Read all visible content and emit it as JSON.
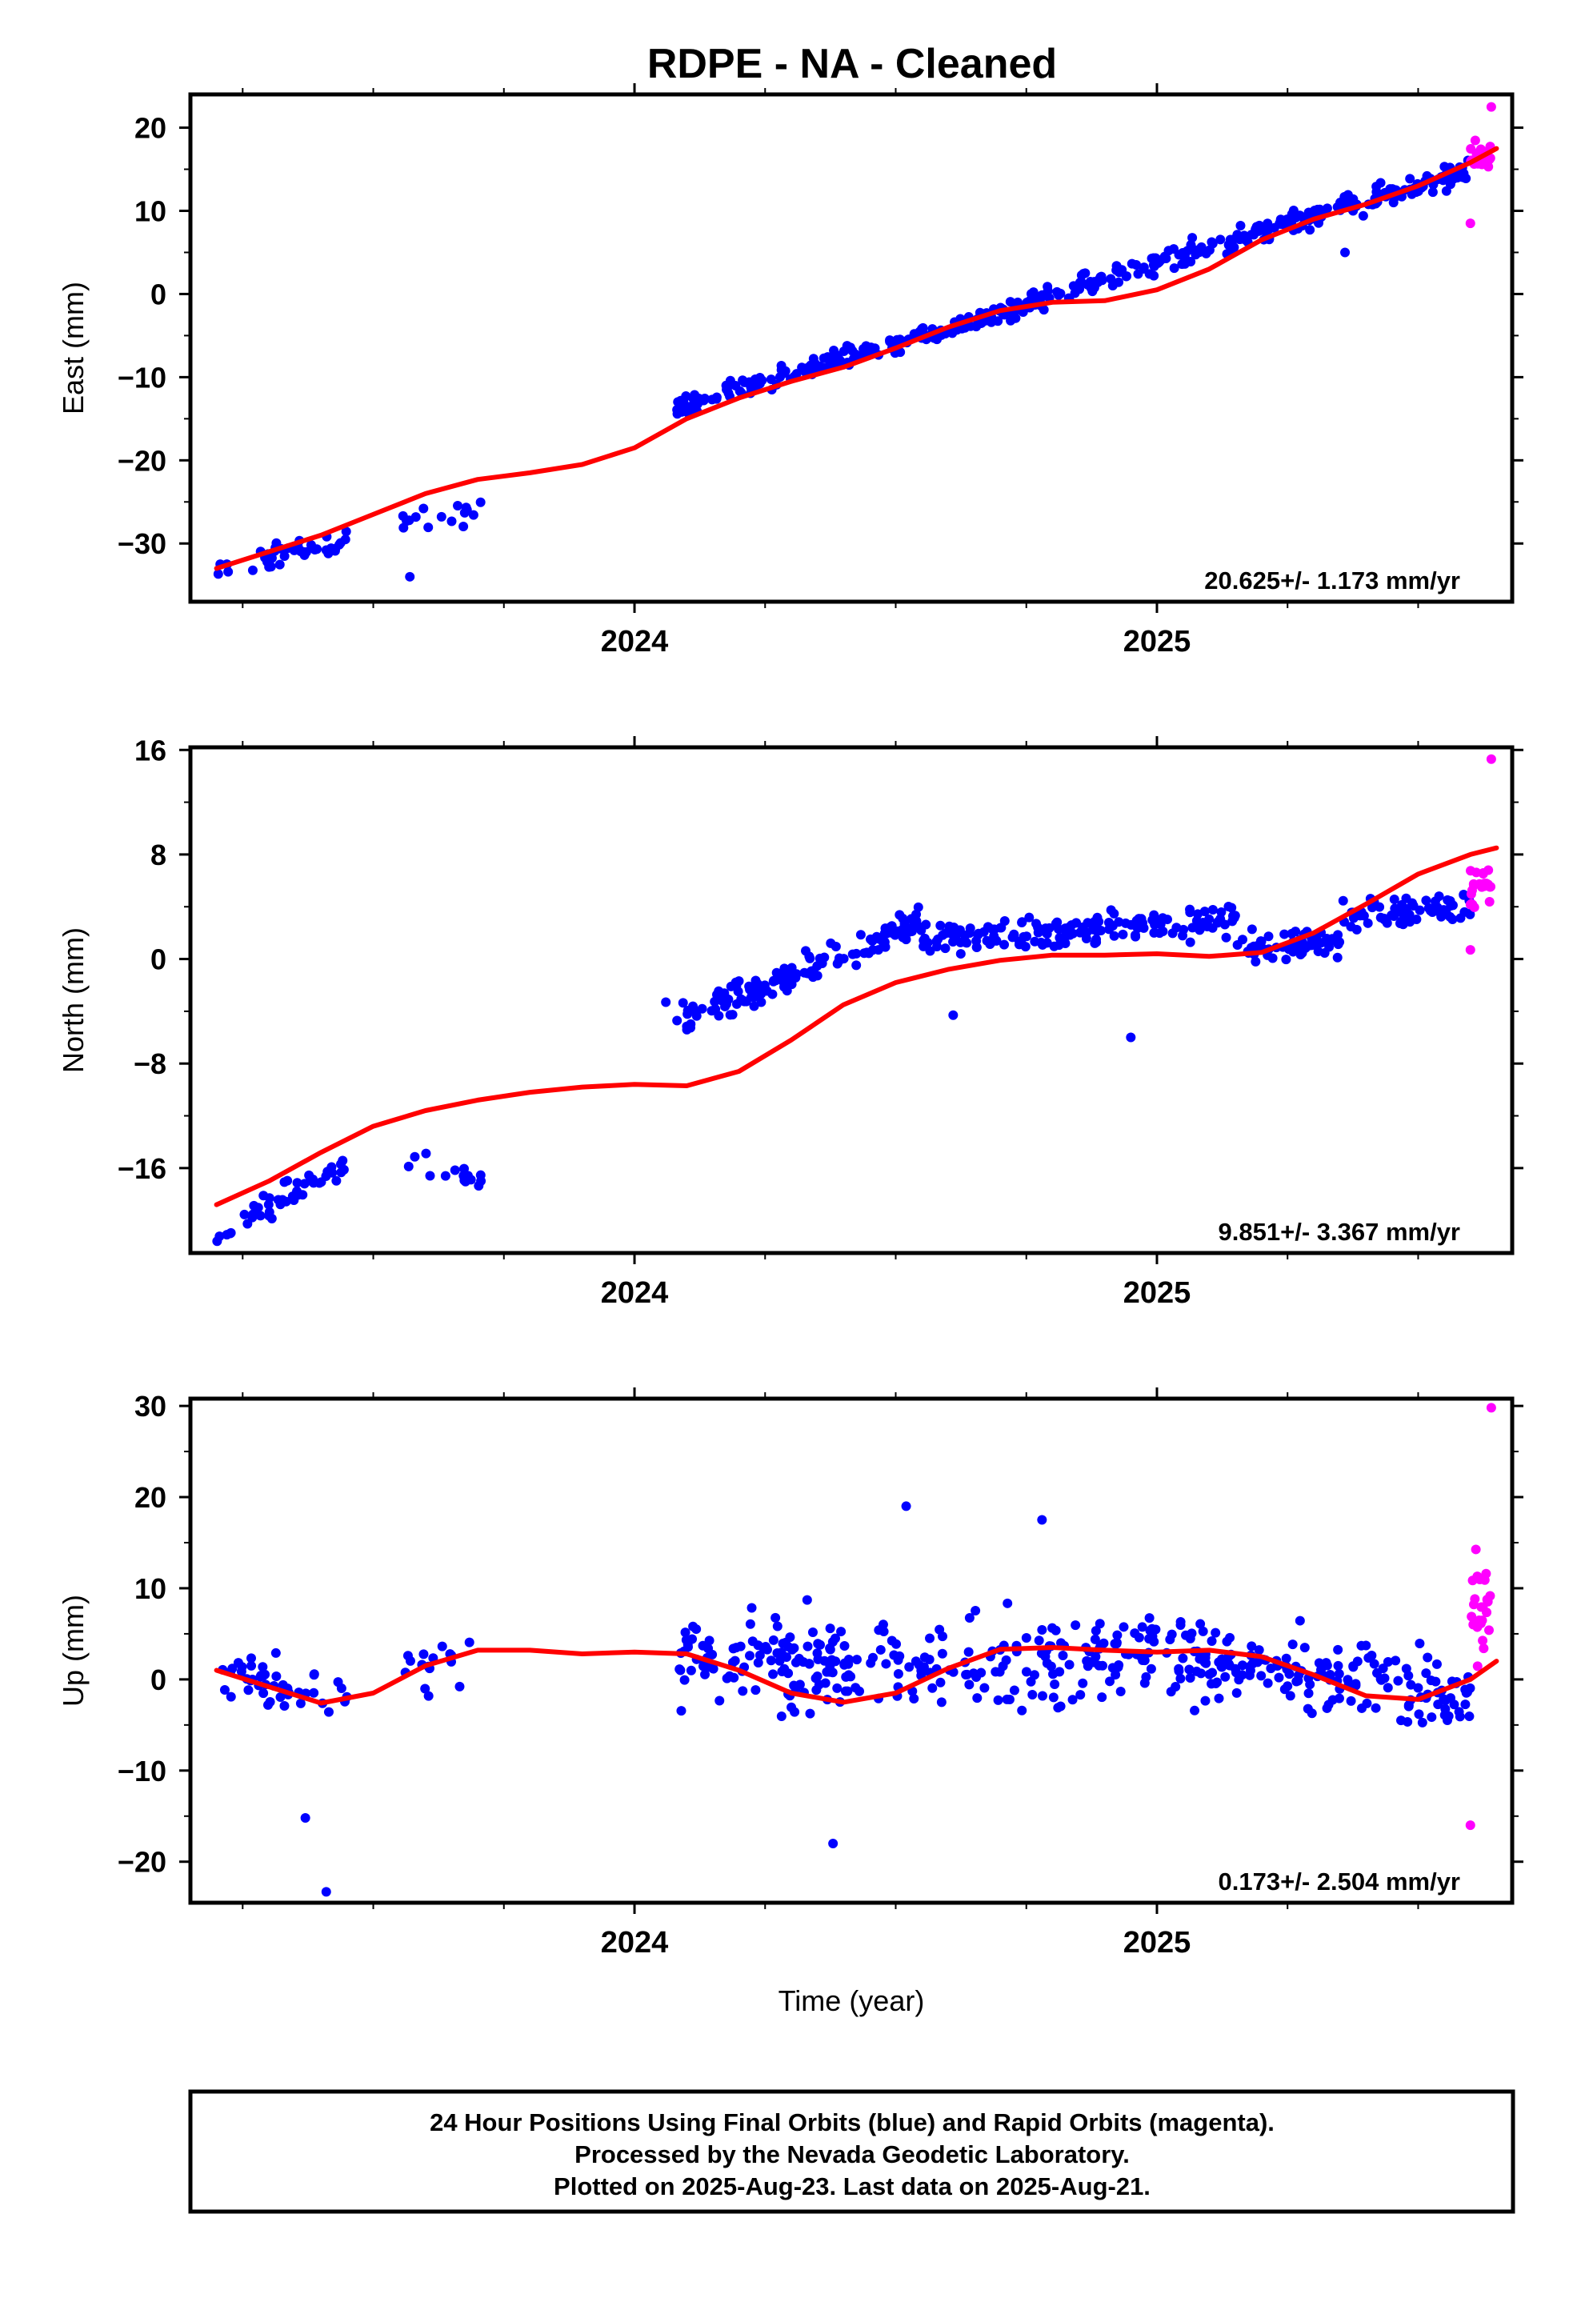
{
  "title": "RDPE  - NA - Cleaned",
  "colors": {
    "final": "#0000ff",
    "rapid": "#ff00ff",
    "model": "#ff0000",
    "frame": "#000000"
  },
  "chart_data": [
    {
      "type": "scatter",
      "ylabel": "East (mm)",
      "xlabel": "",
      "xlim": [
        2023.15,
        2025.68
      ],
      "ylim": [
        -37,
        24
      ],
      "yticks": [
        20,
        10,
        0,
        -10,
        -20,
        -30
      ],
      "ytick_labels": [
        "20",
        "10",
        "0",
        "−10",
        "−20",
        "−30"
      ],
      "xtick_labels": [
        "2024",
        "2025"
      ],
      "xticks": [
        2024,
        2025
      ],
      "rate_text": "20.625+/- 1.173 mm/yr",
      "model": {
        "name": "model fit",
        "x": [
          2023.2,
          2023.3,
          2023.4,
          2023.5,
          2023.6,
          2023.7,
          2023.8,
          2023.9,
          2024.0,
          2024.1,
          2024.2,
          2024.3,
          2024.4,
          2024.5,
          2024.6,
          2024.7,
          2024.8,
          2024.9,
          2025.0,
          2025.1,
          2025.2,
          2025.3,
          2025.4,
          2025.5,
          2025.6,
          2025.65
        ],
        "y": [
          -33.0,
          -31.0,
          -29.0,
          -26.5,
          -24.0,
          -22.3,
          -21.5,
          -20.5,
          -18.5,
          -15.0,
          -12.5,
          -10.5,
          -8.8,
          -6.5,
          -4.0,
          -2.0,
          -1.0,
          -0.8,
          0.5,
          3.0,
          6.5,
          9.0,
          10.8,
          13.0,
          15.8,
          17.5
        ]
      },
      "final_points": {
        "name": "Final Orbits (blue)",
        "groups": [
          {
            "x0": 2023.2,
            "x1": 2023.23,
            "n": 5,
            "trend": [
              -33.5,
              -33.2
            ],
            "scatter": 2.0
          },
          {
            "x0": 2023.25,
            "x1": 2023.45,
            "n": 42,
            "trend": [
              -32.5,
              -29.5
            ],
            "scatter": 1.8
          },
          {
            "x0": 2023.55,
            "x1": 2023.71,
            "n": 16,
            "trend": [
              -28.0,
              -25.5
            ],
            "scatter": 2.2
          },
          {
            "x0": 2024.08,
            "x1": 2024.78,
            "n": 220,
            "trend": [
              -13.5,
              -0.8
            ],
            "scatter": 1.5
          },
          {
            "x0": 2024.78,
            "x1": 2025.6,
            "n": 230,
            "trend": [
              -0.5,
              15.0
            ],
            "scatter": 1.8
          }
        ],
        "outliers": [
          {
            "x": 2023.57,
            "y": -34.0
          },
          {
            "x": 2025.36,
            "y": 5.0
          }
        ]
      },
      "rapid_points": {
        "name": "Rapid Orbits (magenta)",
        "groups": [
          {
            "x0": 2025.6,
            "x1": 2025.64,
            "n": 24,
            "trend": [
              16.0,
              16.5
            ],
            "scatter": 2.5
          }
        ],
        "outliers": [
          {
            "x": 2025.6,
            "y": 8.5
          },
          {
            "x": 2025.64,
            "y": 22.5
          }
        ]
      }
    },
    {
      "type": "scatter",
      "ylabel": "North (mm)",
      "xlabel": "",
      "xlim": [
        2023.15,
        2025.68
      ],
      "ylim": [
        -22.5,
        16.2
      ],
      "yticks": [
        16,
        8,
        0,
        -8,
        -16
      ],
      "ytick_labels": [
        "16",
        "8",
        "0",
        "−8",
        "−16"
      ],
      "xtick_labels": [
        "2024",
        "2025"
      ],
      "xticks": [
        2024,
        2025
      ],
      "rate_text": "9.851+/- 3.367 mm/yr",
      "model": {
        "name": "model fit",
        "x": [
          2023.2,
          2023.3,
          2023.4,
          2023.5,
          2023.6,
          2023.7,
          2023.8,
          2023.9,
          2024.0,
          2024.1,
          2024.2,
          2024.3,
          2024.4,
          2024.5,
          2024.6,
          2024.7,
          2024.8,
          2024.9,
          2025.0,
          2025.1,
          2025.2,
          2025.3,
          2025.4,
          2025.5,
          2025.6,
          2025.65
        ],
        "y": [
          -18.8,
          -17.0,
          -14.8,
          -12.8,
          -11.6,
          -10.8,
          -10.2,
          -9.8,
          -9.6,
          -9.7,
          -8.6,
          -6.2,
          -3.5,
          -1.8,
          -0.8,
          -0.1,
          0.3,
          0.3,
          0.4,
          0.2,
          0.5,
          2.0,
          4.2,
          6.5,
          8.0,
          8.5
        ]
      },
      "final_points": {
        "name": "Final Orbits (blue)",
        "groups": [
          {
            "x0": 2023.2,
            "x1": 2023.23,
            "n": 5,
            "trend": [
              -21.5,
              -21.0
            ],
            "scatter": 0.8
          },
          {
            "x0": 2023.25,
            "x1": 2023.45,
            "n": 42,
            "trend": [
              -20.0,
              -15.8
            ],
            "scatter": 1.3
          },
          {
            "x0": 2023.56,
            "x1": 2023.71,
            "n": 16,
            "trend": [
              -15.0,
              -17.0
            ],
            "scatter": 1.3
          },
          {
            "x0": 2024.08,
            "x1": 2024.55,
            "n": 150,
            "trend": [
              -5.0,
              3.0
            ],
            "scatter": 1.5
          },
          {
            "x0": 2024.55,
            "x1": 2025.6,
            "n": 300,
            "trend": [
              1.5,
              4.0
            ],
            "scatter": 1.6,
            "dip": [
              2025.15,
              2025.35,
              -2.0
            ]
          }
        ],
        "outliers": [
          {
            "x": 2024.95,
            "y": -6.0
          },
          {
            "x": 2024.06,
            "y": -3.3
          },
          {
            "x": 2024.61,
            "y": -4.3
          }
        ]
      },
      "rapid_points": {
        "name": "Rapid Orbits (magenta)",
        "groups": [
          {
            "x0": 2025.6,
            "x1": 2025.64,
            "n": 24,
            "trend": [
              5.0,
              6.0
            ],
            "scatter": 2.0
          }
        ],
        "outliers": [
          {
            "x": 2025.64,
            "y": 15.3
          },
          {
            "x": 2025.6,
            "y": 0.7
          }
        ]
      }
    },
    {
      "type": "scatter",
      "ylabel": "Up (mm)",
      "xlabel": "Time (year)",
      "xlim": [
        2023.15,
        2025.68
      ],
      "ylim": [
        -24.5,
        30.8
      ],
      "yticks": [
        30,
        20,
        10,
        0,
        -10,
        -20
      ],
      "ytick_labels": [
        "30",
        "20",
        "10",
        "0",
        "−10",
        "−20"
      ],
      "xtick_labels": [
        "2024",
        "2025"
      ],
      "xticks": [
        2024,
        2025
      ],
      "rate_text": "0.173+/- 2.504 mm/yr",
      "model": {
        "name": "model fit",
        "x": [
          2023.2,
          2023.3,
          2023.4,
          2023.5,
          2023.6,
          2023.7,
          2023.8,
          2023.9,
          2024.0,
          2024.1,
          2024.2,
          2024.3,
          2024.4,
          2024.5,
          2024.6,
          2024.7,
          2024.8,
          2024.9,
          2025.0,
          2025.1,
          2025.2,
          2025.3,
          2025.4,
          2025.5,
          2025.6,
          2025.65
        ],
        "y": [
          1.0,
          -0.8,
          -2.6,
          -1.5,
          1.5,
          3.2,
          3.2,
          2.8,
          3.0,
          2.8,
          1.0,
          -1.5,
          -2.5,
          -1.5,
          1.2,
          3.3,
          3.5,
          3.2,
          3.0,
          3.2,
          2.5,
          0.5,
          -1.8,
          -2.2,
          0.0,
          2.0
        ]
      },
      "final_points": {
        "name": "Final Orbits (blue)",
        "groups": [
          {
            "x0": 2023.2,
            "x1": 2023.45,
            "n": 45,
            "trend": [
              1.5,
              -2.5
            ],
            "scatter": 4.0
          },
          {
            "x0": 2023.56,
            "x1": 2023.71,
            "n": 16,
            "trend": [
              1.0,
              2.0
            ],
            "scatter": 4.0
          },
          {
            "x0": 2024.08,
            "x1": 2024.95,
            "n": 250,
            "trend": [
              2.0,
              2.0
            ],
            "scatter": 6.0
          },
          {
            "x0": 2024.95,
            "x1": 2025.6,
            "n": 200,
            "trend": [
              3.0,
              -2.0
            ],
            "scatter": 5.5
          }
        ],
        "outliers": [
          {
            "x": 2023.41,
            "y": -23.3
          },
          {
            "x": 2023.37,
            "y": -15.2
          },
          {
            "x": 2024.38,
            "y": -18.0
          },
          {
            "x": 2024.52,
            "y": 19.0
          },
          {
            "x": 2024.78,
            "y": 17.5
          }
        ]
      },
      "rapid_points": {
        "name": "Rapid Orbits (magenta)",
        "groups": [
          {
            "x0": 2025.6,
            "x1": 2025.64,
            "n": 24,
            "trend": [
              8.0,
              6.0
            ],
            "scatter": 8.0
          }
        ],
        "outliers": [
          {
            "x": 2025.64,
            "y": 29.8
          },
          {
            "x": 2025.6,
            "y": -16.0
          }
        ]
      }
    }
  ],
  "footer": {
    "line1": "24 Hour Positions Using Final Orbits (blue) and Rapid Orbits (magenta).",
    "line2": "Processed by the Nevada Geodetic Laboratory.",
    "line3": "Plotted on 2025-Aug-23. Last data on 2025-Aug-21."
  }
}
